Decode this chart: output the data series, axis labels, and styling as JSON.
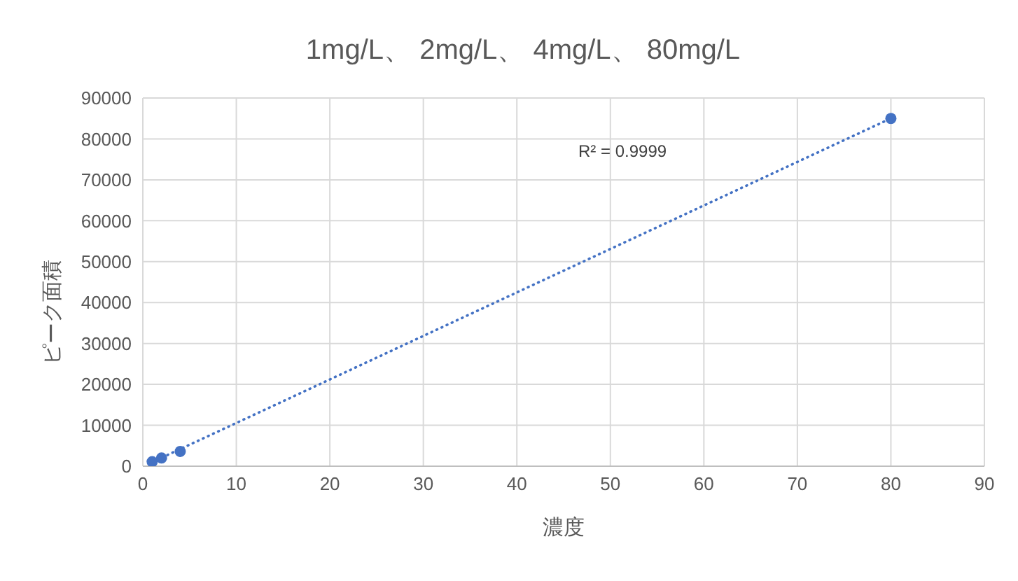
{
  "chart_data": {
    "type": "scatter",
    "title": "1mg/L、 2mg/L、 4mg/L、 80mg/L",
    "xlabel": "濃度",
    "ylabel": "ピーク面積",
    "series": [
      {
        "color": "#4472c4",
        "x": [
          1,
          2,
          4,
          80
        ],
        "values": [
          1100,
          2000,
          3600,
          85000
        ],
        "marker": "circle"
      },
      {
        "type": "line",
        "color": "#4472c4",
        "x": [
          1,
          80
        ],
        "values": [
          1000,
          85000
        ],
        "line_style": "dotted",
        "marker": "none"
      }
    ],
    "annotations": [
      "R² = 0.9999"
    ],
    "xlim": [
      0,
      90
    ],
    "xticks": [
      0,
      10,
      20,
      30,
      40,
      50,
      60,
      70,
      80,
      90
    ],
    "ylim": [
      0,
      90000
    ],
    "yticks": [
      0,
      10000,
      20000,
      30000,
      40000,
      50000,
      60000,
      70000,
      80000,
      90000
    ],
    "grid": true,
    "legend": false
  }
}
